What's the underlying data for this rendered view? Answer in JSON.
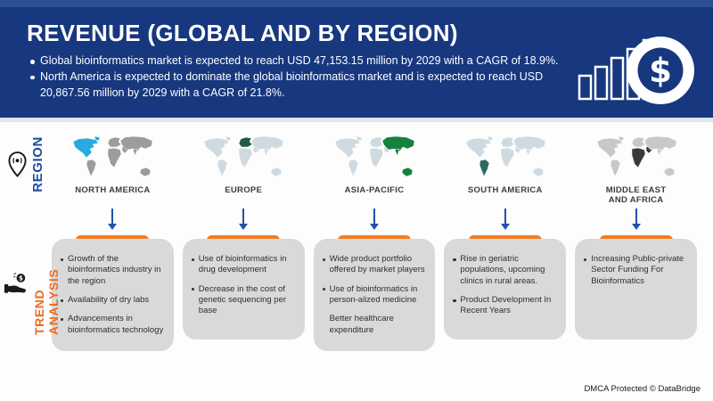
{
  "header": {
    "title": "REVENUE (GLOBAL AND BY REGION)",
    "bullets": [
      "Global bioinformatics market is expected to reach USD 47,153.15 million by 2029 with a CAGR of 18.9%.",
      "North America is expected to dominate the global bioinformatics market and is expected to reach USD 20,867.56 million by 2029 with a CAGR of 21.8%."
    ],
    "background": "#17377e",
    "icon": "bar-chart-with-dollar-coin"
  },
  "sidebar": {
    "region_label": "REGION",
    "region_color": "#1d4da0",
    "region_icon": "location-pin-icon",
    "trend_label": "TREND ANALYSIS",
    "trend_color": "#f26a21",
    "trend_icon": "hand-money-icon"
  },
  "accents": {
    "arrow_blue": "#2050b0",
    "tab_orange": "#f47c20",
    "card_gray": "#d9d9d9"
  },
  "columns": [
    {
      "region": "NORTH AMERICA",
      "map": {
        "base": "#9c9c9c",
        "highlight": "#29aae1",
        "highlighted": [
          "northamerica",
          "greenland"
        ]
      },
      "trends": [
        {
          "text": "Growth of the bioinformatics industry in the region",
          "bullet": true
        },
        {
          "text": "Availability of dry labs",
          "bullet": true
        },
        {
          "text": "Advancements in bioinformatics technology",
          "bullet": true
        }
      ]
    },
    {
      "region": "EUROPE",
      "map": {
        "base": "#cfdae0",
        "highlight": "#1d5c41",
        "highlighted": [
          "europe"
        ]
      },
      "trends": [
        {
          "text": "Use of bioinformatics in drug development",
          "bullet": true
        },
        {
          "text": "Decrease in the cost of genetic sequencing per base",
          "bullet": true
        }
      ]
    },
    {
      "region": "ASIA-PACIFIC",
      "map": {
        "base": "#cfdae0",
        "highlight": "#15813f",
        "highlighted": [
          "asia",
          "india",
          "australia"
        ]
      },
      "trends": [
        {
          "text": "Wide product portfolio offered by market players",
          "bullet": true
        },
        {
          "text": "Use of bioinformatics in person-alized medicine",
          "bullet": true
        },
        {
          "text": "Better healthcare expenditure",
          "bullet": false
        }
      ]
    },
    {
      "region": "SOUTH AMERICA",
      "map": {
        "base": "#cfdae0",
        "highlight": "#2f6a5e",
        "highlighted": [
          "southamerica"
        ]
      },
      "trends": [
        {
          "text": "Rise in geriatric populations, upcoming clinics in rural areas.",
          "bullet": true
        },
        {
          "text": "Product Development In Recent Years",
          "bullet": true
        }
      ]
    },
    {
      "region": "MIDDLE EAST\nAND AFRICA",
      "map": {
        "base": "#c8c8c8",
        "highlight": "#3a3a3a",
        "highlighted": [
          "africa",
          "middleeast"
        ]
      },
      "trends": [
        {
          "text": "Increasing Public-private Sector Funding For Bioinformatics",
          "bullet": true
        }
      ]
    }
  ],
  "footer": {
    "text": "DMCA Protected © DataBridge"
  }
}
